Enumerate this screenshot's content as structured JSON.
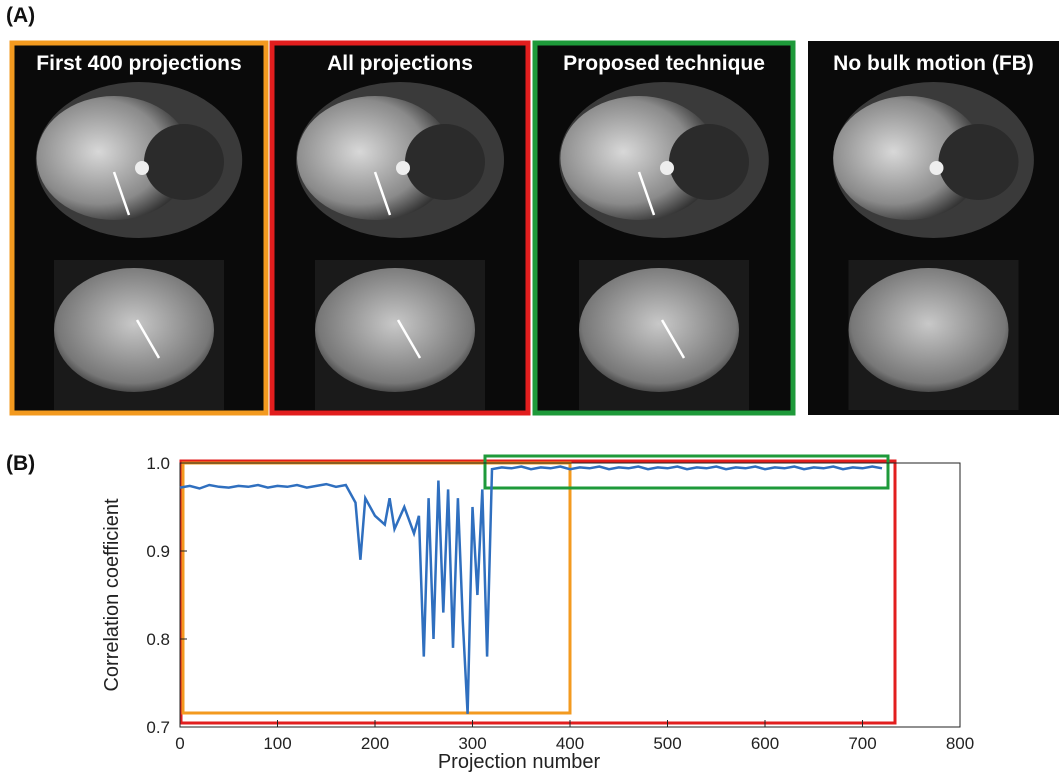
{
  "panel_a": {
    "label": "(A)",
    "images": [
      {
        "title": "First 400 projections",
        "frame_color": "#f39a1f"
      },
      {
        "title": "All projections",
        "frame_color": "#e21e1e"
      },
      {
        "title": "Proposed technique",
        "frame_color": "#1e9a3a"
      },
      {
        "title": "No bulk motion (FB)",
        "frame_color": null
      }
    ]
  },
  "panel_b": {
    "label": "(B)"
  },
  "chart_data": {
    "type": "line",
    "xlabel": "Projection number",
    "ylabel": "Correlation coefficient",
    "color": "#2f6fbf",
    "x": [
      0,
      10,
      20,
      30,
      40,
      50,
      60,
      70,
      80,
      90,
      100,
      110,
      120,
      130,
      140,
      150,
      160,
      170,
      180,
      185,
      190,
      200,
      210,
      215,
      220,
      230,
      240,
      245,
      250,
      255,
      260,
      265,
      270,
      275,
      280,
      285,
      290,
      295,
      300,
      305,
      310,
      315,
      320,
      330,
      340,
      350,
      360,
      370,
      380,
      390,
      400,
      410,
      420,
      430,
      440,
      450,
      460,
      470,
      480,
      490,
      500,
      510,
      520,
      530,
      540,
      550,
      560,
      570,
      580,
      590,
      600,
      610,
      620,
      630,
      640,
      650,
      660,
      670,
      680,
      690,
      700,
      710,
      720
    ],
    "values": [
      0.972,
      0.974,
      0.971,
      0.975,
      0.973,
      0.972,
      0.974,
      0.973,
      0.975,
      0.972,
      0.974,
      0.973,
      0.975,
      0.972,
      0.974,
      0.976,
      0.973,
      0.975,
      0.955,
      0.89,
      0.96,
      0.94,
      0.93,
      0.96,
      0.925,
      0.95,
      0.92,
      0.94,
      0.78,
      0.96,
      0.8,
      0.98,
      0.83,
      0.97,
      0.79,
      0.96,
      0.82,
      0.715,
      0.95,
      0.85,
      0.97,
      0.78,
      0.993,
      0.995,
      0.994,
      0.996,
      0.993,
      0.995,
      0.994,
      0.996,
      0.993,
      0.995,
      0.994,
      0.996,
      0.993,
      0.995,
      0.994,
      0.996,
      0.993,
      0.995,
      0.994,
      0.996,
      0.993,
      0.995,
      0.994,
      0.996,
      0.993,
      0.995,
      0.994,
      0.996,
      0.993,
      0.995,
      0.994,
      0.996,
      0.993,
      0.995,
      0.994,
      0.996,
      0.993,
      0.995,
      0.994,
      0.996,
      0.994
    ],
    "xlim": [
      0,
      800
    ],
    "xticks": [
      0,
      100,
      200,
      300,
      400,
      500,
      600,
      700,
      800
    ],
    "ylim": [
      0.7,
      1.0
    ],
    "yticks": [
      0.7,
      0.8,
      0.9,
      {
        "value": 1,
        "label": "1.0"
      }
    ]
  }
}
